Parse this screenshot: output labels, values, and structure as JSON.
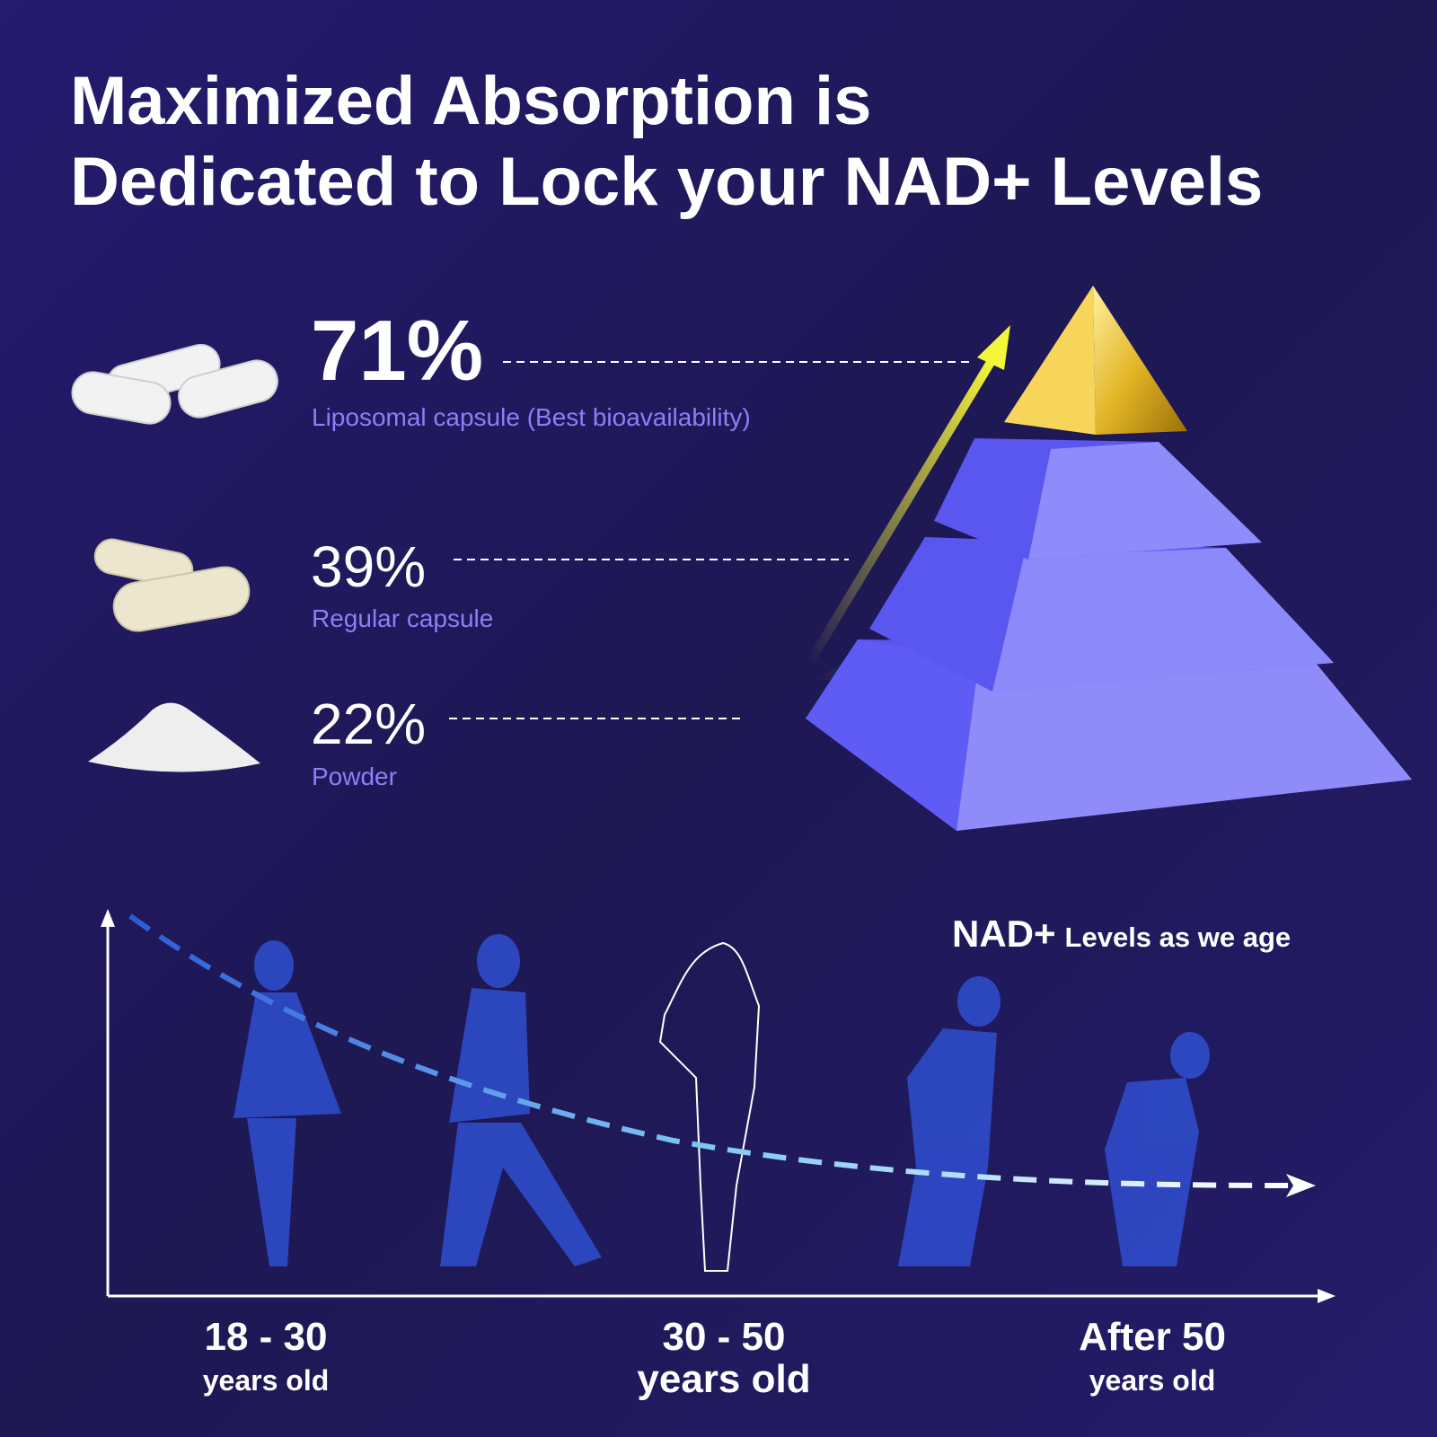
{
  "header": {
    "title_line1": "Maximized Absorption is",
    "title_line2": {
      "before": "Dedicated to Lock your ",
      "bold": "NAD+",
      "after": " Levels"
    }
  },
  "stats": [
    {
      "value": "71%",
      "label": "Liposomal capsule (Best bioavailability)"
    },
    {
      "value": "39%",
      "label": "Regular capsule"
    },
    {
      "value": "22%",
      "label": "Powder"
    }
  ],
  "age_chart": {
    "title_bold": "NAD+",
    "title_rest": "Levels as we age",
    "ages": [
      {
        "range": "18 - 30",
        "unit": "years old"
      },
      {
        "range": "30 - 50",
        "unit": "years old"
      },
      {
        "range": "After 50",
        "unit": "years old"
      }
    ]
  }
}
